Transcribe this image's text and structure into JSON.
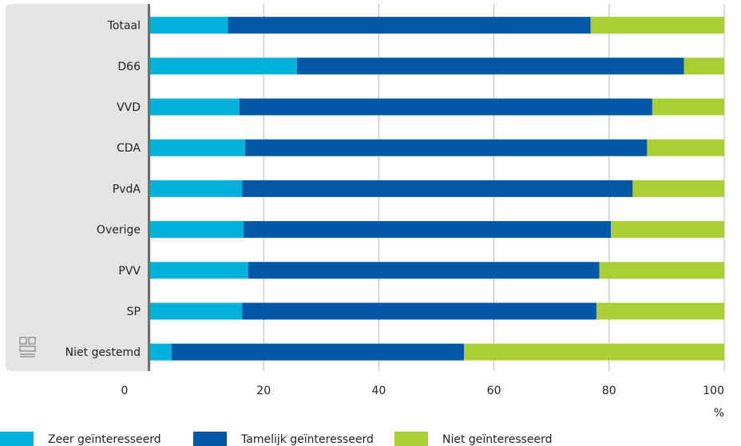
{
  "chart_data": {
    "type": "bar",
    "orientation": "horizontal",
    "stacked": true,
    "categories": [
      "Totaal",
      "D66",
      "VVD",
      "CDA",
      "PvdA",
      "Overige",
      "PVV",
      "SP",
      "Niet gestemd"
    ],
    "series": [
      {
        "name": "Zeer geïnteresseerd",
        "color": "#00b1dc",
        "values": [
          13.8,
          25.8,
          15.8,
          16.8,
          16.3,
          16.5,
          17.3,
          16.3,
          4.0
        ]
      },
      {
        "name": "Tamelijk geïnteresseerd",
        "color": "#0058a7",
        "values": [
          63.0,
          67.2,
          71.7,
          69.8,
          67.8,
          63.8,
          61.0,
          61.5,
          50.8
        ]
      },
      {
        "name": "Niet geïnteresseerd",
        "color": "#a9cf35",
        "values": [
          23.2,
          7.0,
          12.5,
          13.4,
          15.9,
          19.7,
          21.7,
          22.2,
          45.2
        ]
      }
    ],
    "xticks": [
      0,
      20,
      40,
      60,
      80,
      100
    ],
    "xlim": [
      0,
      100
    ],
    "xunit": "%",
    "grid": true,
    "legend_position": "bottom"
  }
}
